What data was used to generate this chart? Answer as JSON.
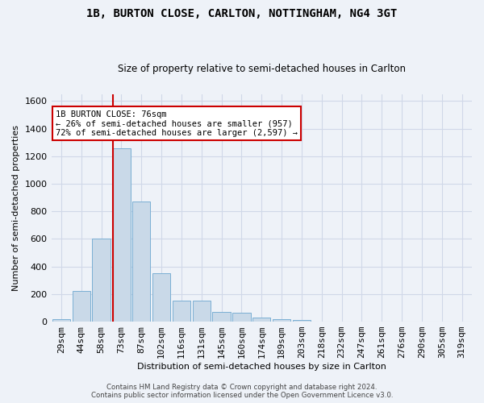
{
  "title": "1B, BURTON CLOSE, CARLTON, NOTTINGHAM, NG4 3GT",
  "subtitle": "Size of property relative to semi-detached houses in Carlton",
  "xlabel": "Distribution of semi-detached houses by size in Carlton",
  "ylabel": "Number of semi-detached properties",
  "bar_labels": [
    "29sqm",
    "44sqm",
    "58sqm",
    "73sqm",
    "87sqm",
    "102sqm",
    "116sqm",
    "131sqm",
    "145sqm",
    "160sqm",
    "174sqm",
    "189sqm",
    "203sqm",
    "218sqm",
    "232sqm",
    "247sqm",
    "261sqm",
    "276sqm",
    "290sqm",
    "305sqm",
    "319sqm"
  ],
  "bar_values": [
    20,
    220,
    600,
    1260,
    870,
    350,
    155,
    155,
    70,
    65,
    30,
    20,
    15,
    0,
    0,
    0,
    0,
    0,
    0,
    0,
    0
  ],
  "bar_color": "#c9d9e8",
  "bar_edgecolor": "#7bafd4",
  "ylim": [
    0,
    1650
  ],
  "yticks": [
    0,
    200,
    400,
    600,
    800,
    1000,
    1200,
    1400,
    1600
  ],
  "property_bin_index": 3,
  "vline_color": "#cc0000",
  "vline_x": 2.56,
  "annotation_text": "1B BURTON CLOSE: 76sqm\n← 26% of semi-detached houses are smaller (957)\n72% of semi-detached houses are larger (2,597) →",
  "annotation_box_facecolor": "#ffffff",
  "annotation_box_edgecolor": "#cc0000",
  "footer_text": "Contains HM Land Registry data © Crown copyright and database right 2024.\nContains public sector information licensed under the Open Government Licence v3.0.",
  "grid_color": "#d0d8e8",
  "background_color": "#eef2f8"
}
